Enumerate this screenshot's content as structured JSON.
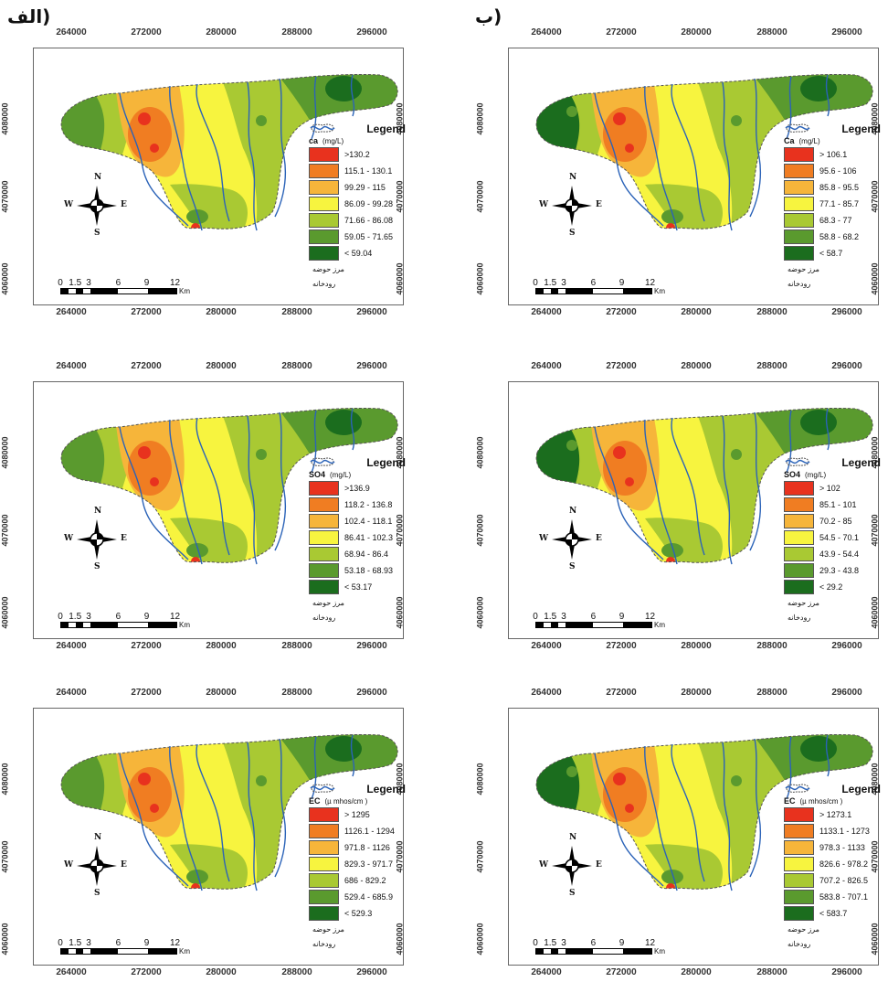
{
  "column_labels": {
    "left": "(الف",
    "right": "(ب"
  },
  "x_ticks": [
    "264000",
    "272000",
    "280000",
    "288000",
    "296000"
  ],
  "y_ticks": [
    "4080000",
    "4070000",
    "4060000"
  ],
  "scale": {
    "marks": [
      "0",
      "1.5",
      "3",
      "6",
      "9",
      "12"
    ],
    "unit": "Km"
  },
  "compass": {
    "n": "N",
    "s": "S",
    "e": "E",
    "w": "W"
  },
  "legend_common": {
    "boundary": "مرز حوضه",
    "river": "رودخانه",
    "title": "Legend"
  },
  "colors": [
    "#e8321e",
    "#f07d22",
    "#f6b53a",
    "#f7f43f",
    "#a9c933",
    "#5a9a2e",
    "#1b6d1e"
  ],
  "maps": [
    {
      "var": "ca",
      "unit": "(mg/L)",
      "classes": [
        ">130.2",
        "115.1 - 130.1",
        "99.29 - 115",
        "86.09 - 99.28",
        "71.66 - 86.08",
        "59.05 - 71.65",
        "< 59.04"
      ]
    },
    {
      "var": "Ca",
      "unit": "(mg/L)",
      "classes": [
        "> 106.1",
        "95.6 - 106",
        "85.8 - 95.5",
        "77.1 - 85.7",
        "68.3 - 77",
        "58.8 - 68.2",
        "< 58.7"
      ]
    },
    {
      "var": "SO4",
      "unit": "(mg/L)",
      "classes": [
        ">136.9",
        "118.2 - 136.8",
        "102.4 - 118.1",
        "86.41 - 102.3",
        "68.94 - 86.4",
        "53.18 - 68.93",
        "< 53.17"
      ]
    },
    {
      "var": "SO4",
      "unit": "(mg/L)",
      "classes": [
        "> 102",
        "85.1 - 101",
        "70.2 - 85",
        "54.5 - 70.1",
        "43.9 - 54.4",
        "29.3 - 43.8",
        "< 29.2"
      ]
    },
    {
      "var": "EC",
      "unit": "(µ mhos/cm )",
      "classes": [
        "> 1295",
        "1126.1 - 1294",
        "971.8 - 1126",
        "829.3 - 971.7",
        "686 - 829.2",
        "529.4 - 685.9",
        "< 529.3"
      ]
    },
    {
      "var": "EC",
      "unit": "(µ mhos/cm )",
      "classes": [
        "> 1273.1",
        "1133.1 - 1273",
        "978.3 - 1133",
        "826.6 - 978.2",
        "707.2 - 826.5",
        "583.8 - 707.1",
        "< 583.7"
      ]
    }
  ]
}
